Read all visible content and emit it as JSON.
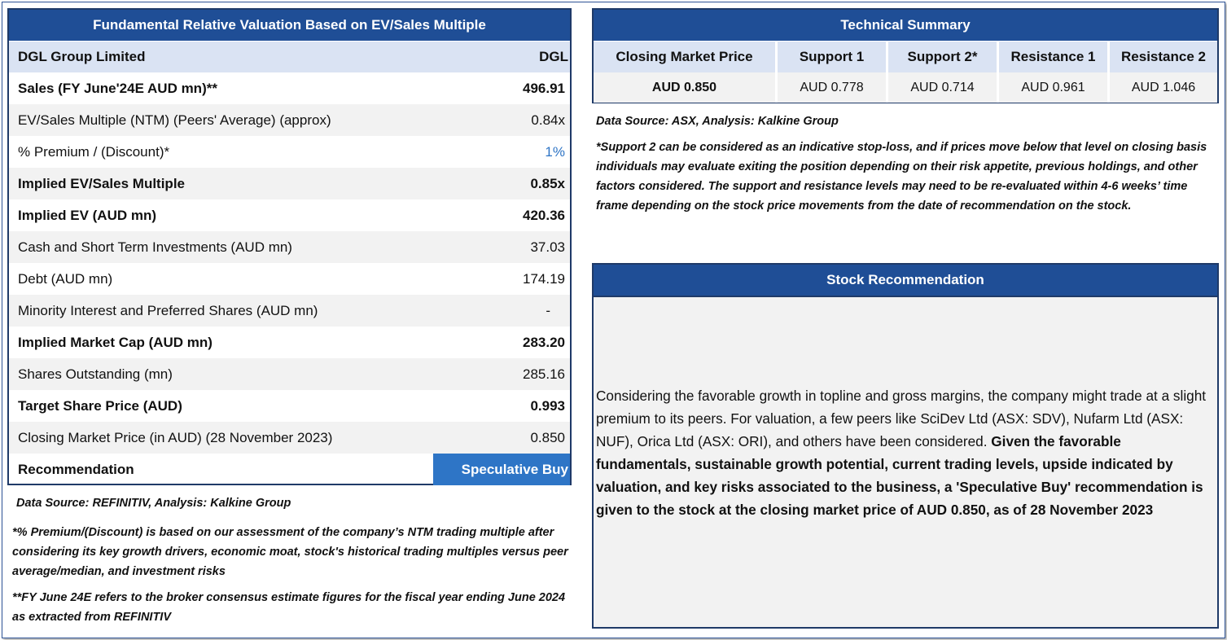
{
  "valuation": {
    "title": "Fundamental Relative Valuation Based on EV/Sales Multiple",
    "company": "DGL Group Limited",
    "ticker": "DGL",
    "rows": [
      {
        "label": "Sales (FY June'24E AUD mn)**",
        "value": "496.91"
      },
      {
        "label": "EV/Sales Multiple (NTM)  (Peers' Average) (approx)",
        "value": "0.84x"
      },
      {
        "label": "% Premium / (Discount)*",
        "value": "1%"
      },
      {
        "label": "Implied EV/Sales Multiple",
        "value": "0.85x"
      },
      {
        "label": "Implied EV (AUD mn)",
        "value": "420.36"
      },
      {
        "label": "Cash and Short Term Investments (AUD mn)",
        "value": "37.03"
      },
      {
        "label": "Debt (AUD mn)",
        "value": "174.19"
      },
      {
        "label": "Minority Interest and Preferred Shares (AUD mn)",
        "value": "-"
      },
      {
        "label": "Implied Market Cap (AUD mn)",
        "value": "283.20"
      },
      {
        "label": "Shares Outstanding (mn)",
        "value": "285.16"
      },
      {
        "label": "Target Share Price (AUD)",
        "value": "0.993"
      },
      {
        "label": "Closing Market Price (in AUD) (28 November 2023)",
        "value": "0.850"
      }
    ],
    "recommendation_label": "Recommendation",
    "recommendation_value": "Speculative Buy",
    "data_source": "Data Source: REFINITIV, Analysis: Kalkine Group",
    "note1": "*% Premium/(Discount) is based on our assessment of the company’s NTM trading multiple after considering its key growth drivers, economic moat, stock's historical trading multiples versus peer average/median, and investment risks",
    "note2": "**FY June 24E refers to the broker consensus estimate figures for the fiscal year ending June 2024  as extracted from REFINITIV",
    "accent_color": "#1f4e96",
    "highlight_color": "#2e75c6"
  },
  "technical": {
    "title": "Technical Summary",
    "headers": [
      "Closing Market Price",
      "Support 1",
      "Support 2*",
      "Resistance 1",
      "Resistance 2"
    ],
    "values": [
      "AUD 0.850",
      "AUD 0.778",
      "AUD 0.714",
      "AUD 0.961",
      "AUD 1.046"
    ],
    "data_source": "Data Source: ASX, Analysis: Kalkine Group",
    "note": "*Support 2 can be considered as an indicative stop-loss, and if prices move below that level on closing basis individuals may evaluate exiting the position depending on their risk appetite, previous holdings, and other factors considered. The support and resistance levels may need to be re-evaluated within 4-6 weeks’ time frame depending on the stock price movements from the date of recommendation on the stock."
  },
  "stock_recommendation": {
    "title": "Stock Recommendation",
    "text_normal": "Considering the favorable growth in topline and gross margins, the company might trade at a slight premium to its peers. For valuation, a few peers like SciDev Ltd (ASX: SDV), Nufarm Ltd (ASX: NUF), Orica Ltd (ASX: ORI), and others have been considered. ",
    "text_bold": "Given the favorable fundamentals, sustainable growth potential, current trading levels, upside indicated by valuation, and key risks associated to the business, a 'Speculative Buy' recommendation is given to the stock at the closing market price of AUD 0.850, as of 28 November 2023"
  }
}
